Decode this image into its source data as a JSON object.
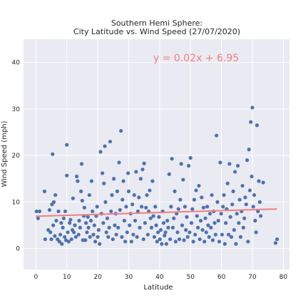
{
  "chart_data": {
    "type": "scatter",
    "title_line1": "Southern Hemi Sphere:",
    "title_line2": "City Latitude vs. Wind Speed (27/07/2020)",
    "xlabel": "Latitude",
    "ylabel": "Wind Speed (mph)",
    "xlim": [
      -4,
      82
    ],
    "ylim": [
      -4.5,
      45
    ],
    "xticks": [
      0,
      10,
      20,
      30,
      40,
      50,
      60,
      70,
      80
    ],
    "yticks": [
      0,
      10,
      20,
      30,
      40
    ],
    "grid": true,
    "colors": {
      "background": "#eaeaf2",
      "grid": "#ffffff",
      "points": "#4c72b0",
      "regression": "#f08080"
    },
    "regression": {
      "equation": "y = 0.02x + 6.95",
      "slope": 0.02,
      "intercept": 6.95,
      "x_range": [
        0,
        78
      ]
    },
    "points": [
      [
        0.2,
        8
      ],
      [
        0.7,
        6.5
      ],
      [
        1.2,
        8
      ],
      [
        2.8,
        12.3
      ],
      [
        3,
        2
      ],
      [
        4,
        4
      ],
      [
        4.4,
        8.3
      ],
      [
        4.7,
        3.5
      ],
      [
        5,
        2
      ],
      [
        5.2,
        9.5
      ],
      [
        5.4,
        20.3
      ],
      [
        5.6,
        5
      ],
      [
        5.8,
        10
      ],
      [
        6.1,
        2.7
      ],
      [
        6.3,
        11.5
      ],
      [
        6.6,
        6
      ],
      [
        7,
        2
      ],
      [
        7.3,
        8
      ],
      [
        7.6,
        1.5
      ],
      [
        7.9,
        3
      ],
      [
        8.2,
        5.5
      ],
      [
        8.4,
        1
      ],
      [
        8.7,
        4.5
      ],
      [
        9,
        6.5
      ],
      [
        9.3,
        2.5
      ],
      [
        9.5,
        8
      ],
      [
        9.7,
        1.8
      ],
      [
        10,
        22.3
      ],
      [
        10,
        15.7
      ],
      [
        10.3,
        3.5
      ],
      [
        10.6,
        1.5
      ],
      [
        10.9,
        5.5
      ],
      [
        11.2,
        6.2
      ],
      [
        11.5,
        2
      ],
      [
        11.8,
        4
      ],
      [
        12,
        10.8
      ],
      [
        12.3,
        3.5
      ],
      [
        12.6,
        5
      ],
      [
        12.9,
        2.5
      ],
      [
        13.2,
        15.5
      ],
      [
        13.5,
        14.5
      ],
      [
        13.8,
        3
      ],
      [
        14,
        6
      ],
      [
        14.3,
        4.5
      ],
      [
        14.6,
        12.3
      ],
      [
        14.8,
        18.2
      ],
      [
        15,
        10.3
      ],
      [
        15.2,
        1.8
      ],
      [
        15.5,
        7
      ],
      [
        15.7,
        8.8
      ],
      [
        16,
        1.8
      ],
      [
        16.2,
        5.5
      ],
      [
        16.5,
        3.5
      ],
      [
        16.8,
        6.8
      ],
      [
        17,
        4.5
      ],
      [
        17.3,
        11.5
      ],
      [
        17.5,
        2.5
      ],
      [
        17.8,
        6
      ],
      [
        18,
        14.5
      ],
      [
        18.3,
        8
      ],
      [
        18.6,
        3
      ],
      [
        18.9,
        5
      ],
      [
        19.2,
        1.5
      ],
      [
        19.5,
        7
      ],
      [
        19.8,
        9
      ],
      [
        20,
        2.5
      ],
      [
        20.3,
        4
      ],
      [
        20.6,
        1
      ],
      [
        20.9,
        20.8
      ],
      [
        21.2,
        7.5
      ],
      [
        21.5,
        16.2
      ],
      [
        21.8,
        5.5
      ],
      [
        22,
        14
      ],
      [
        22.3,
        22
      ],
      [
        22.5,
        10
      ],
      [
        22.8,
        3.5
      ],
      [
        23.1,
        6.5
      ],
      [
        23.4,
        2.5
      ],
      [
        23.7,
        4.5
      ],
      [
        24,
        23
      ],
      [
        24.3,
        8
      ],
      [
        24.6,
        11.5
      ],
      [
        24.9,
        2
      ],
      [
        25.2,
        15
      ],
      [
        25.5,
        5
      ],
      [
        25.8,
        7.5
      ],
      [
        26,
        3
      ],
      [
        26.3,
        12.3
      ],
      [
        26.6,
        4.5
      ],
      [
        26.9,
        18.5
      ],
      [
        27.2,
        8.3
      ],
      [
        27.5,
        25.3
      ],
      [
        27.8,
        2.5
      ],
      [
        28,
        10.5
      ],
      [
        28.3,
        14.5
      ],
      [
        28.6,
        6
      ],
      [
        28.9,
        1.5
      ],
      [
        29.2,
        9
      ],
      [
        29.5,
        3.5
      ],
      [
        29.8,
        16.2
      ],
      [
        30,
        12.3
      ],
      [
        30.3,
        5
      ],
      [
        30.6,
        7.5
      ],
      [
        30.9,
        1.5
      ],
      [
        31.2,
        9.5
      ],
      [
        31.5,
        3
      ],
      [
        31.8,
        11.5
      ],
      [
        32.1,
        6
      ],
      [
        32.4,
        16.5
      ],
      [
        32.7,
        2.5
      ],
      [
        33,
        8
      ],
      [
        33.3,
        11
      ],
      [
        33.6,
        4.5
      ],
      [
        33.9,
        15
      ],
      [
        34.2,
        9
      ],
      [
        34.5,
        17
      ],
      [
        34.8,
        2
      ],
      [
        35,
        18.3
      ],
      [
        35.3,
        5.5
      ],
      [
        35.6,
        8.8
      ],
      [
        35.9,
        11.5
      ],
      [
        36.2,
        3
      ],
      [
        36.5,
        8
      ],
      [
        36.8,
        12.5
      ],
      [
        37.1,
        6.5
      ],
      [
        37.4,
        4.5
      ],
      [
        37.7,
        14.5
      ],
      [
        38,
        7
      ],
      [
        38.3,
        2.5
      ],
      [
        38.6,
        9
      ],
      [
        38.9,
        5
      ],
      [
        39.2,
        1.5
      ],
      [
        39.5,
        3.5
      ],
      [
        39.8,
        6.8
      ],
      [
        40.1,
        2
      ],
      [
        40.4,
        4
      ],
      [
        40.7,
        1
      ],
      [
        41,
        8
      ],
      [
        41.3,
        5.5
      ],
      [
        41.6,
        2.8
      ],
      [
        41.9,
        3.5
      ],
      [
        42.2,
        1
      ],
      [
        42.5,
        6
      ],
      [
        42.8,
        4.5
      ],
      [
        43.1,
        16
      ],
      [
        43.4,
        2
      ],
      [
        43.7,
        9
      ],
      [
        44,
        19.3
      ],
      [
        44.3,
        4.5
      ],
      [
        44.6,
        6.5
      ],
      [
        44.9,
        12.3
      ],
      [
        45.2,
        1.5
      ],
      [
        45.5,
        7.5
      ],
      [
        45.8,
        3.5
      ],
      [
        46.1,
        8.5
      ],
      [
        46.4,
        2
      ],
      [
        46.7,
        10.5
      ],
      [
        47,
        18.2
      ],
      [
        47.3,
        5
      ],
      [
        47.6,
        14.8
      ],
      [
        47.9,
        1.8
      ],
      [
        48.2,
        9
      ],
      [
        48.5,
        4
      ],
      [
        48.8,
        6.8
      ],
      [
        49.1,
        2.5
      ],
      [
        49.4,
        17.8
      ],
      [
        49.7,
        3.5
      ],
      [
        50,
        19.5
      ],
      [
        50.3,
        5.5
      ],
      [
        50.6,
        8.5
      ],
      [
        50.9,
        1.5
      ],
      [
        51.2,
        10.5
      ],
      [
        51.5,
        3
      ],
      [
        51.8,
        12.5
      ],
      [
        52.1,
        7
      ],
      [
        52.4,
        4.5
      ],
      [
        52.7,
        13.5
      ],
      [
        53,
        2
      ],
      [
        53.3,
        6
      ],
      [
        53.6,
        11
      ],
      [
        53.9,
        4
      ],
      [
        54.2,
        8.8
      ],
      [
        54.5,
        1.5
      ],
      [
        54.8,
        6.5
      ],
      [
        55.1,
        3.5
      ],
      [
        55.4,
        9
      ],
      [
        55.7,
        5
      ],
      [
        56,
        2.5
      ],
      [
        56.3,
        7.5
      ],
      [
        56.6,
        4.5
      ],
      [
        56.9,
        11.5
      ],
      [
        57.2,
        1.8
      ],
      [
        57.5,
        8
      ],
      [
        57.8,
        5.5
      ],
      [
        58.1,
        3
      ],
      [
        58.4,
        24.3
      ],
      [
        58.7,
        10
      ],
      [
        59,
        6
      ],
      [
        59.3,
        1.5
      ],
      [
        59.6,
        18.5
      ],
      [
        59.9,
        7.5
      ],
      [
        60.2,
        3
      ],
      [
        60.5,
        9
      ],
      [
        60.8,
        11.5
      ],
      [
        61.1,
        1
      ],
      [
        61.4,
        5.5
      ],
      [
        61.7,
        8.5
      ],
      [
        62,
        14
      ],
      [
        62.3,
        3
      ],
      [
        62.6,
        18.2
      ],
      [
        62.9,
        6.8
      ],
      [
        63.2,
        2.5
      ],
      [
        63.5,
        9.5
      ],
      [
        63.8,
        12.3
      ],
      [
        64.1,
        4
      ],
      [
        64.4,
        16.5
      ],
      [
        64.7,
        1
      ],
      [
        65,
        7.5
      ],
      [
        65.3,
        17.8
      ],
      [
        65.6,
        5.5
      ],
      [
        65.9,
        10.5
      ],
      [
        66.2,
        2.5
      ],
      [
        66.5,
        8
      ],
      [
        66.8,
        13.5
      ],
      [
        67.1,
        4.5
      ],
      [
        67.4,
        6.5
      ],
      [
        67.7,
        11
      ],
      [
        68,
        9.5
      ],
      [
        68.3,
        19
      ],
      [
        68.6,
        1.5
      ],
      [
        68.9,
        21.3
      ],
      [
        69.2,
        12.5
      ],
      [
        69.5,
        27.2
      ],
      [
        69.8,
        15.5
      ],
      [
        70,
        30.3
      ],
      [
        70.3,
        9
      ],
      [
        70.6,
        11.5
      ],
      [
        70.9,
        6
      ],
      [
        71.2,
        3.5
      ],
      [
        71.5,
        26.5
      ],
      [
        71.8,
        8
      ],
      [
        72.1,
        14.5
      ],
      [
        72.4,
        10
      ],
      [
        72.7,
        7
      ],
      [
        73.5,
        14.2
      ],
      [
        77.5,
        1.2
      ],
      [
        78,
        2
      ]
    ]
  }
}
